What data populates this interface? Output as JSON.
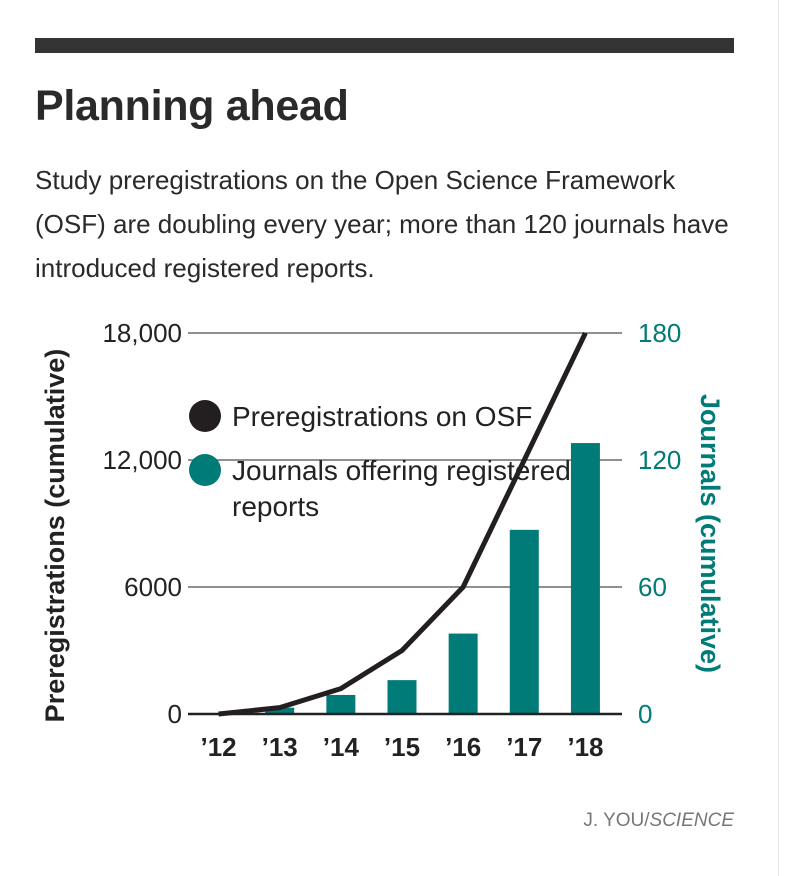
{
  "header": {
    "title": "Planning ahead",
    "subtitle": "Study preregistrations on the Open Science Framework (OSF) are doubling every year; more than 120 journals have introduced registered reports."
  },
  "credit": {
    "author": "J. YOU/",
    "source": "SCIENCE"
  },
  "colors": {
    "line": "#231f20",
    "bar": "#007b78",
    "grid": "#222222",
    "text": "#222222",
    "right_axis": "#007b78"
  },
  "chart_data": {
    "type": "bar+line",
    "categories": [
      "’12",
      "’13",
      "’14",
      "’15",
      "’16",
      "’17",
      "’18"
    ],
    "series": [
      {
        "name": "Preregistrations on OSF",
        "kind": "line",
        "axis": "left",
        "values": [
          0,
          300,
          1200,
          3000,
          6000,
          12000,
          18000
        ]
      },
      {
        "name": "Journals offering registered reports",
        "kind": "bar",
        "axis": "right",
        "values": [
          0,
          3,
          9,
          16,
          38,
          87,
          128
        ]
      }
    ],
    "ylabel": "Preregistrations (cumulative)",
    "ylabel_right": "Journals (cumulative)",
    "ylim": [
      0,
      18000
    ],
    "ylim_right": [
      0,
      180
    ],
    "yticks": [
      "0",
      "6000",
      "12,000",
      "18,000"
    ],
    "yticks_right": [
      "0",
      "60",
      "120",
      "180"
    ],
    "grid": true,
    "legend_position": "top-left"
  }
}
